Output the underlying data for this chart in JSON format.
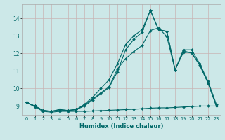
{
  "xlabel": "Humidex (Indice chaleur)",
  "ylabel": "",
  "bg_color": "#cce8e8",
  "grid_color": "#c8b4b4",
  "line_color": "#006868",
  "xlim": [
    -0.5,
    23.5
  ],
  "ylim": [
    8.5,
    14.8
  ],
  "xticks": [
    0,
    1,
    2,
    3,
    4,
    5,
    6,
    7,
    8,
    9,
    10,
    11,
    12,
    13,
    14,
    15,
    16,
    17,
    18,
    19,
    20,
    21,
    22,
    23
  ],
  "yticks": [
    9,
    10,
    11,
    12,
    13,
    14
  ],
  "line1_x": [
    0,
    1,
    2,
    3,
    4,
    5,
    6,
    7,
    8,
    9,
    10,
    11,
    12,
    13,
    14,
    15,
    16,
    17,
    18,
    19,
    20,
    21,
    22,
    23
  ],
  "line1_y": [
    9.2,
    9.0,
    8.75,
    8.7,
    8.8,
    8.75,
    8.8,
    9.1,
    9.5,
    10.0,
    10.5,
    11.4,
    12.5,
    13.0,
    13.35,
    14.45,
    13.35,
    13.25,
    11.05,
    12.2,
    12.2,
    11.4,
    10.4,
    9.1
  ],
  "line2_x": [
    0,
    1,
    2,
    3,
    4,
    5,
    6,
    7,
    8,
    9,
    10,
    11,
    12,
    13,
    14,
    15,
    16,
    17,
    18,
    19,
    20,
    21,
    22,
    23
  ],
  "line2_y": [
    9.2,
    9.0,
    8.75,
    8.7,
    8.75,
    8.75,
    8.8,
    9.05,
    9.4,
    9.75,
    10.1,
    11.1,
    11.7,
    12.1,
    12.45,
    13.3,
    13.45,
    12.95,
    11.05,
    12.05,
    12.05,
    11.3,
    10.3,
    9.0
  ],
  "line3_x": [
    0,
    1,
    2,
    3,
    4,
    5,
    6,
    7,
    8,
    9,
    10,
    11,
    12,
    13,
    14,
    15,
    16,
    17,
    18,
    19,
    20,
    21,
    22,
    23
  ],
  "line3_y": [
    9.2,
    9.0,
    8.75,
    8.7,
    8.8,
    8.75,
    8.8,
    9.0,
    9.35,
    9.7,
    10.05,
    10.95,
    12.2,
    12.8,
    13.2,
    14.45,
    13.35,
    13.25,
    11.05,
    12.15,
    12.0,
    11.35,
    10.3,
    9.0
  ],
  "line4_x": [
    0,
    1,
    2,
    3,
    4,
    5,
    6,
    7,
    8,
    9,
    10,
    11,
    12,
    13,
    14,
    15,
    16,
    17,
    18,
    19,
    20,
    21,
    22,
    23
  ],
  "line4_y": [
    9.2,
    8.95,
    8.7,
    8.65,
    8.7,
    8.7,
    8.7,
    8.7,
    8.72,
    8.74,
    8.76,
    8.78,
    8.8,
    8.82,
    8.85,
    8.88,
    8.9,
    8.9,
    8.92,
    8.95,
    8.97,
    9.0,
    9.0,
    9.0
  ]
}
